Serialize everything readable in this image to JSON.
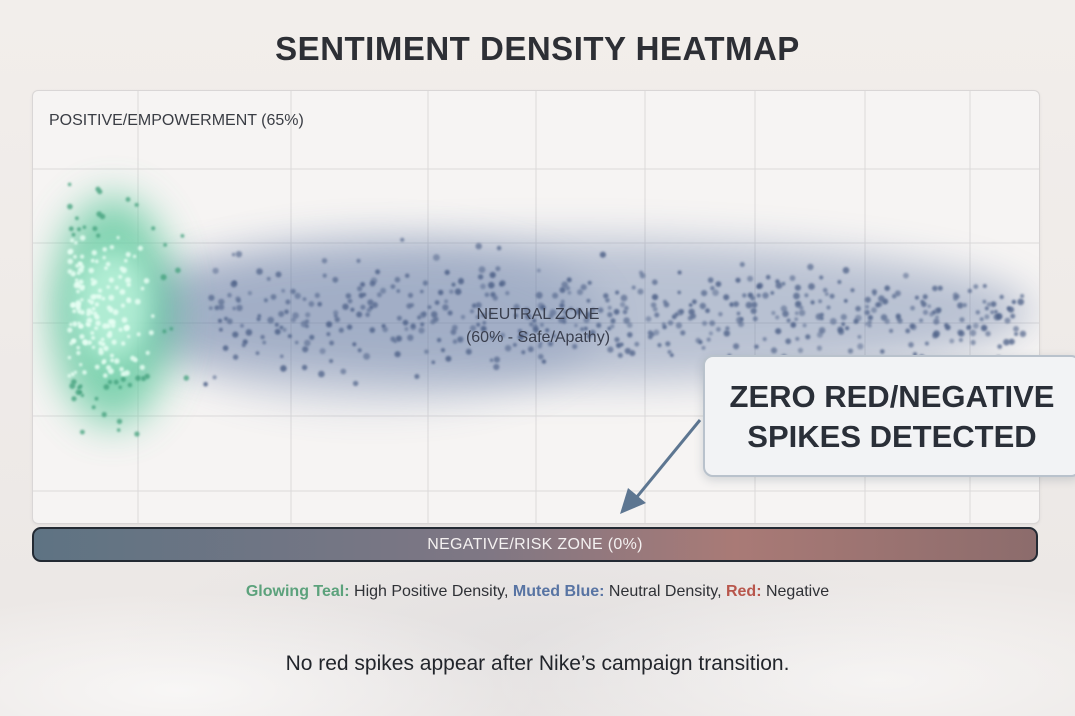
{
  "colors": {
    "teal": "#5fd6a8",
    "blue": "#56709e",
    "red": "#b8564c",
    "grid": "#dcdada"
  },
  "chart_data": {
    "type": "heatmap",
    "title": "SENTIMENT DENSITY HEATMAP",
    "zones": [
      {
        "name": "POSITIVE/EMPOWERMENT (65%)",
        "share_percent": 65,
        "color": "teal"
      },
      {
        "name": "NEUTRAL ZONE",
        "detail": "(60% - Safe/Apathy)",
        "share_percent": 60,
        "color": "blue"
      },
      {
        "name": "NEGATIVE/RISK ZONE (0%)",
        "share_percent": 0,
        "color": "red"
      }
    ],
    "annotation": [
      "ZERO RED/NEGATIVE",
      "SPIKES DETECTED"
    ],
    "legend": [
      {
        "key": "Glowing Teal:",
        "desc": " High Positive Density,"
      },
      {
        "key": "Muted Blue:",
        "desc": " Neutral Density,"
      },
      {
        "key": "Red:",
        "desc": " Negative"
      }
    ],
    "grid": true
  },
  "caption": "No red spikes appear after Nike’s campaign transition."
}
